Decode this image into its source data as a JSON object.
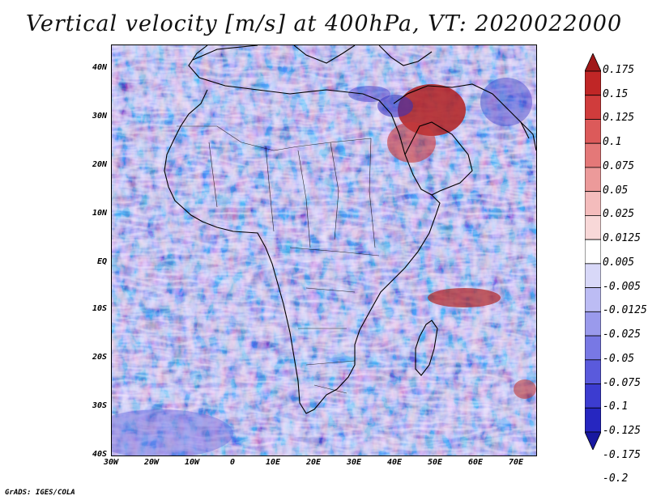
{
  "title": "Vertical velocity [m/s] at 400hPa, VT: 2020022000",
  "footer": "GrADS: IGES/COLA",
  "map": {
    "lat_labels": [
      "40N",
      "30N",
      "20N",
      "10N",
      "EQ",
      "10S",
      "20S",
      "30S",
      "40S"
    ],
    "lon_labels": [
      "30W",
      "20W",
      "10W",
      "0",
      "10E",
      "20E",
      "30E",
      "40E",
      "50E",
      "60E",
      "70E"
    ],
    "lat_range": [
      -40,
      45
    ],
    "lon_range": [
      -30,
      75
    ],
    "background_color": "#a9a9ef",
    "coastline_color": "#000000"
  },
  "colorbar": {
    "levels": [
      "0.175",
      "0.15",
      "0.125",
      "0.1",
      "0.075",
      "0.05",
      "0.025",
      "0.0125",
      "0.005",
      "-0.005",
      "-0.0125",
      "-0.025",
      "-0.05",
      "-0.075",
      "-0.1",
      "-0.125",
      "-0.175",
      "-0.2"
    ],
    "colors": [
      "#a01818",
      "#c02626",
      "#d03c3c",
      "#dc5a5a",
      "#e47878",
      "#ec9a9a",
      "#f4bcbc",
      "#f8d8d8",
      "#ffffff",
      "#d8d8f8",
      "#bcbcf4",
      "#9a9aec",
      "#7878e4",
      "#5a5adc",
      "#3c3cd0",
      "#2626c0",
      "#1818a0"
    ]
  }
}
